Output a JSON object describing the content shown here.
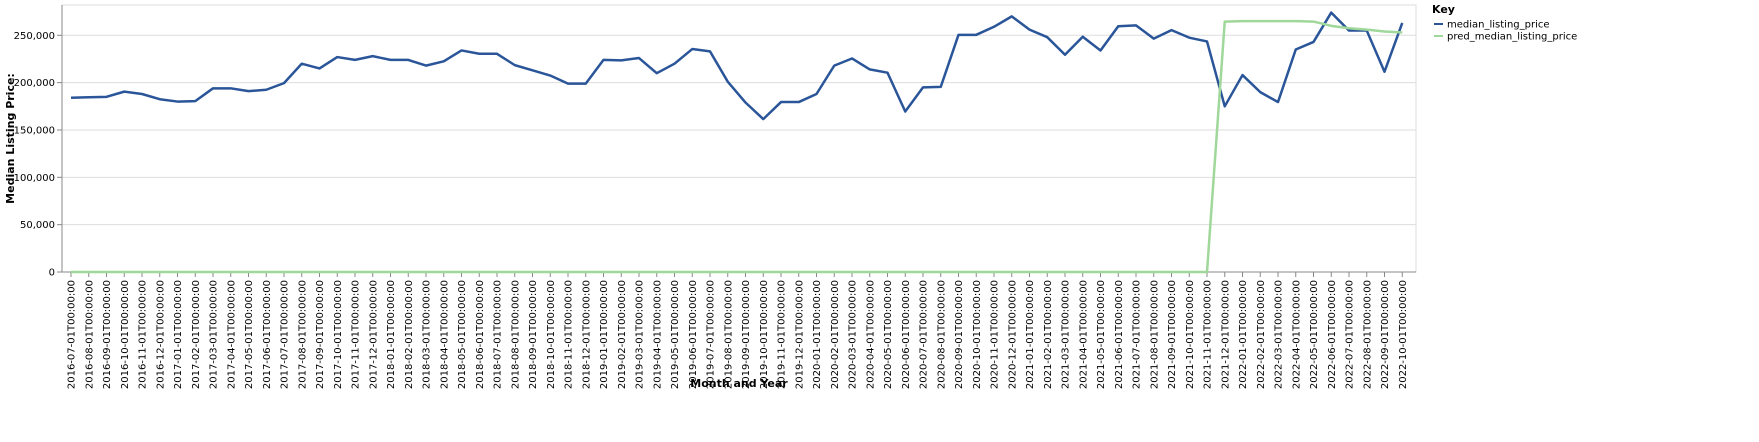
{
  "chart_data": {
    "type": "line",
    "title": "",
    "xlabel": "Month and Year",
    "ylabel": "Median Listing Price:",
    "ylim": [
      0,
      282000
    ],
    "yticks": [
      0,
      50000,
      100000,
      150000,
      200000,
      250000
    ],
    "ytick_labels": [
      "0",
      "50,000",
      "100,000",
      "150,000",
      "200,000",
      "250,000"
    ],
    "grid": true,
    "legend": {
      "title": "Key",
      "placement": "top-right"
    },
    "categories": [
      "2016-07-01T00:00:00",
      "2016-08-01T00:00:00",
      "2016-09-01T00:00:00",
      "2016-10-01T00:00:00",
      "2016-11-01T00:00:00",
      "2016-12-01T00:00:00",
      "2017-01-01T00:00:00",
      "2017-02-01T00:00:00",
      "2017-03-01T00:00:00",
      "2017-04-01T00:00:00",
      "2017-05-01T00:00:00",
      "2017-06-01T00:00:00",
      "2017-07-01T00:00:00",
      "2017-08-01T00:00:00",
      "2017-09-01T00:00:00",
      "2017-10-01T00:00:00",
      "2017-11-01T00:00:00",
      "2017-12-01T00:00:00",
      "2018-01-01T00:00:00",
      "2018-02-01T00:00:00",
      "2018-03-01T00:00:00",
      "2018-04-01T00:00:00",
      "2018-05-01T00:00:00",
      "2018-06-01T00:00:00",
      "2018-07-01T00:00:00",
      "2018-08-01T00:00:00",
      "2018-09-01T00:00:00",
      "2018-10-01T00:00:00",
      "2018-11-01T00:00:00",
      "2018-12-01T00:00:00",
      "2019-01-01T00:00:00",
      "2019-02-01T00:00:00",
      "2019-03-01T00:00:00",
      "2019-04-01T00:00:00",
      "2019-05-01T00:00:00",
      "2019-06-01T00:00:00",
      "2019-07-01T00:00:00",
      "2019-08-01T00:00:00",
      "2019-09-01T00:00:00",
      "2019-10-01T00:00:00",
      "2019-11-01T00:00:00",
      "2019-12-01T00:00:00",
      "2020-01-01T00:00:00",
      "2020-02-01T00:00:00",
      "2020-03-01T00:00:00",
      "2020-04-01T00:00:00",
      "2020-05-01T00:00:00",
      "2020-06-01T00:00:00",
      "2020-07-01T00:00:00",
      "2020-08-01T00:00:00",
      "2020-09-01T00:00:00",
      "2020-10-01T00:00:00",
      "2020-11-01T00:00:00",
      "2020-12-01T00:00:00",
      "2021-01-01T00:00:00",
      "2021-02-01T00:00:00",
      "2021-03-01T00:00:00",
      "2021-04-01T00:00:00",
      "2021-05-01T00:00:00",
      "2021-06-01T00:00:00",
      "2021-07-01T00:00:00",
      "2021-08-01T00:00:00",
      "2021-09-01T00:00:00",
      "2021-10-01T00:00:00",
      "2021-11-01T00:00:00",
      "2021-12-01T00:00:00",
      "2022-01-01T00:00:00",
      "2022-02-01T00:00:00",
      "2022-03-01T00:00:00",
      "2022-04-01T00:00:00",
      "2022-05-01T00:00:00",
      "2022-06-01T00:00:00",
      "2022-07-01T00:00:00",
      "2022-08-01T00:00:00",
      "2022-09-01T00:00:00",
      "2022-10-01T00:00:00"
    ],
    "series": [
      {
        "name": "median_listing_price",
        "color": "#2a5599",
        "values": [
          184000,
          184500,
          185000,
          190500,
          188000,
          182500,
          180000,
          180500,
          194000,
          194000,
          191000,
          192500,
          199500,
          220000,
          215000,
          227000,
          224000,
          228000,
          224000,
          224000,
          218000,
          222500,
          234000,
          230500,
          230500,
          218500,
          213000,
          207500,
          199000,
          199000,
          224000,
          223500,
          226000,
          210000,
          220000,
          235500,
          233000,
          201000,
          179000,
          161500,
          179500,
          179500,
          188000,
          218000,
          225500,
          214000,
          210500,
          169500,
          195000,
          195500,
          250500,
          250500,
          259000,
          270000,
          256000,
          248000,
          229500,
          248500,
          234000,
          259500,
          260500,
          246500,
          255500,
          247500,
          243500,
          175000,
          208000,
          190000,
          179500,
          235000,
          243000,
          274000,
          255000,
          255000,
          211500,
          263000
        ]
      },
      {
        "name": "pred_median_listing_price",
        "color": "#a0d79a",
        "values": [
          0,
          0,
          0,
          0,
          0,
          0,
          0,
          0,
          0,
          0,
          0,
          0,
          0,
          0,
          0,
          0,
          0,
          0,
          0,
          0,
          0,
          0,
          0,
          0,
          0,
          0,
          0,
          0,
          0,
          0,
          0,
          0,
          0,
          0,
          0,
          0,
          0,
          0,
          0,
          0,
          0,
          0,
          0,
          0,
          0,
          0,
          0,
          0,
          0,
          0,
          0,
          0,
          0,
          0,
          0,
          0,
          0,
          0,
          0,
          0,
          0,
          0,
          0,
          0,
          0,
          264500,
          265000,
          265000,
          265000,
          265000,
          264500,
          260000,
          257500,
          256000,
          254000,
          253000
        ]
      }
    ]
  }
}
